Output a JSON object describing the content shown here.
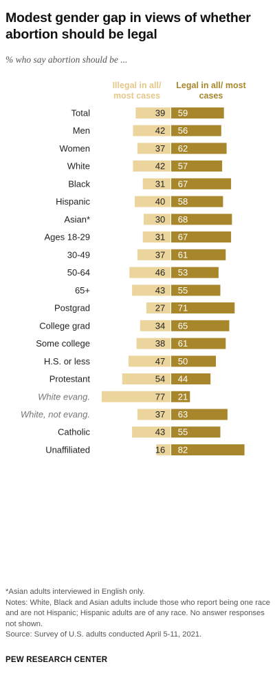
{
  "title": "Modest gender gap in views of whether abortion should be legal",
  "subtitle": "% who say abortion should be ...",
  "columns": {
    "illegal": "Illegal in all/ most cases",
    "legal": "Legal in all/ most cases"
  },
  "colors": {
    "illegal": "#ecd59d",
    "legal": "#a8862b",
    "label": "#222222",
    "label_muted": "#777777"
  },
  "chart_data": {
    "type": "bar",
    "orientation": "horizontal-diverging",
    "categories": [
      "Total",
      "Men",
      "Women",
      "White",
      "Black",
      "Hispanic",
      "Asian*",
      "Ages 18-29",
      "30-49",
      "50-64",
      "65+",
      "Postgrad",
      "College grad",
      "Some college",
      "H.S. or less",
      "Protestant",
      "White evang.",
      "White, not evang.",
      "Catholic",
      "Unaffiliated"
    ],
    "italic_categories": [
      "White evang.",
      "White, not evang."
    ],
    "groups": [
      [
        "Total"
      ],
      [
        "Men",
        "Women"
      ],
      [
        "White",
        "Black",
        "Hispanic",
        "Asian*"
      ],
      [
        "Ages 18-29",
        "30-49",
        "50-64",
        "65+"
      ],
      [
        "Postgrad",
        "College grad",
        "Some college",
        "H.S. or less"
      ],
      [
        "Protestant",
        "White evang.",
        "White, not evang."
      ],
      [
        "Catholic",
        "Unaffiliated"
      ]
    ],
    "series": [
      {
        "name": "Illegal in all/ most cases",
        "values": [
          39,
          42,
          37,
          42,
          31,
          40,
          30,
          31,
          37,
          46,
          43,
          27,
          34,
          38,
          47,
          54,
          77,
          37,
          43,
          16
        ]
      },
      {
        "name": "Legal in all/ most cases",
        "values": [
          59,
          56,
          62,
          57,
          67,
          58,
          68,
          67,
          61,
          53,
          55,
          71,
          65,
          61,
          50,
          44,
          21,
          63,
          55,
          82
        ]
      }
    ],
    "unit": "%",
    "xlim": [
      0,
      100
    ],
    "grid": false,
    "legend": "column headers above bars"
  },
  "footnotes": [
    "*Asian adults interviewed in English only.",
    "Notes: White, Black and Asian adults include those who report being one race and are not Hispanic; Hispanic adults are of any race. No answer responses not shown.",
    "Source: Survey of U.S. adults conducted April 5-11, 2021."
  ],
  "source_org": "PEW RESEARCH CENTER"
}
